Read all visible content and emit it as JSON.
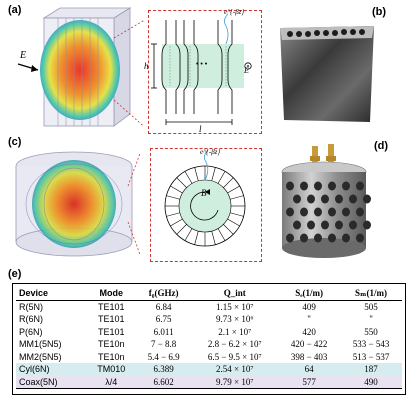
{
  "panels": {
    "a": {
      "label": "(a)",
      "e_field_label": "E⃗",
      "decay_label": "e^{-βz}",
      "h_label": "h",
      "l_label": "l",
      "ellipsis": "• • •",
      "out_of_plane_label": "E⃗"
    },
    "b": {
      "label": "(b)"
    },
    "c": {
      "label": "(c)",
      "decay_label": "e^{-βz}",
      "b_field_label": "B⃗"
    },
    "d": {
      "label": "(d)"
    },
    "e": {
      "label": "(e)"
    }
  },
  "colors": {
    "teal_fill": "#cfeedd",
    "red_dashed": "#d0342c",
    "highlight_cyl": "#d7ecef",
    "highlight_coax": "#e8e2f1",
    "heatmap_hot": "#e0301e",
    "heatmap_cool": "#2a6fdb"
  },
  "table": {
    "headers": [
      "Device",
      "Mode",
      "f₀(GHz)",
      "Q_int",
      "Sₑ(1/m)",
      "Sₘ(1/m)"
    ],
    "rows": [
      [
        "R(5N)",
        "TE101",
        "6.84",
        "1.15 × 10⁷",
        "409",
        "505"
      ],
      [
        "R(6N)",
        "TE101",
        "6.75",
        "9.73 × 10⁶",
        "\"",
        "\""
      ],
      [
        "P(6N)",
        "TE101",
        "6.011",
        "2.1 × 10⁷",
        "420",
        "550"
      ],
      [
        "MM1(5N5)",
        "TE10n",
        "7 − 8.8",
        "2.8 − 6.2 × 10⁷",
        "420 − 422",
        "533 − 543"
      ],
      [
        "MM2(5N5)",
        "TE10n",
        "5.4 − 6.9",
        "6.5 − 9.5 × 10⁷",
        "398 − 403",
        "513 − 537"
      ],
      [
        "Cyl(6N)",
        "TM010",
        "6.389",
        "2.54 × 10⁷",
        "64",
        "187"
      ],
      [
        "Coax(5N)",
        "λ/4",
        "6.602",
        "9.79 × 10⁷",
        "577",
        "490"
      ]
    ]
  }
}
